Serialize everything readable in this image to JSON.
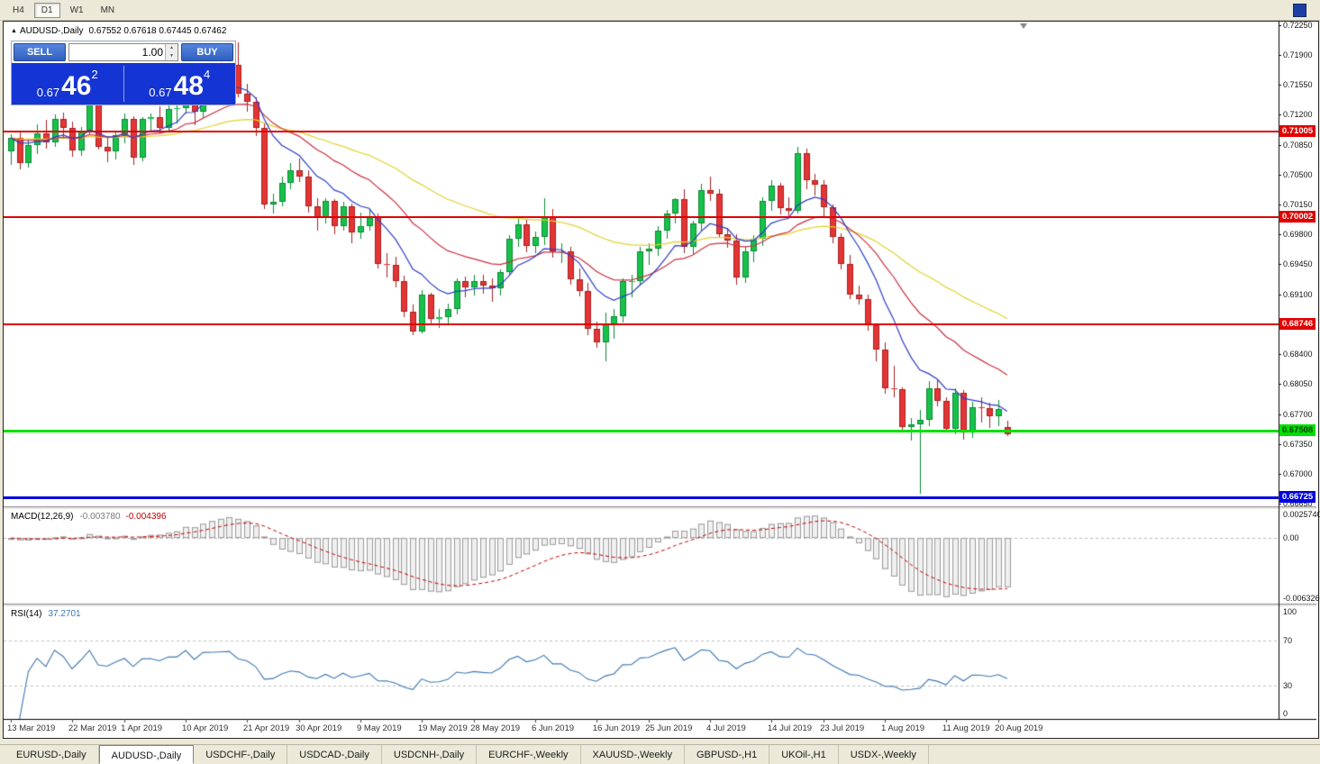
{
  "window": {
    "timeframes": [
      {
        "label": "H4",
        "active": false
      },
      {
        "label": "D1",
        "active": true
      },
      {
        "label": "W1",
        "active": false
      },
      {
        "label": "MN",
        "active": false
      }
    ]
  },
  "icons": {
    "title_marker": "▲",
    "spinner_up": "▲",
    "spinner_down": "▼"
  },
  "chart": {
    "symbol_title": "AUDUSD-,Daily",
    "ohlc": "0.67552 0.67618 0.67445 0.67462"
  },
  "trade_panel": {
    "sell_label": "SELL",
    "buy_label": "BUY",
    "volume": "1.00",
    "sell_price": {
      "prefix": "0.67",
      "big": "46",
      "sup": "2"
    },
    "buy_price": {
      "prefix": "0.67",
      "big": "48",
      "sup": "4"
    }
  },
  "indicators": {
    "macd": {
      "label": "MACD(12,26,9)",
      "main_value": "-0.003780",
      "signal_value": "-0.004396",
      "fast": 12,
      "slow": 26,
      "signal": 9,
      "histogram_color": "#9a9a9a",
      "signal_color": "#cc0000",
      "axis_labels": [
        {
          "text": "0.0025740",
          "value": 0.002574
        },
        {
          "text": "0.00",
          "value": 0
        },
        {
          "text": "-0.0063260",
          "value": -0.006326
        }
      ]
    },
    "rsi": {
      "label": "RSI(14)",
      "value": "37.2701",
      "period": 14,
      "color": "#3c78b4",
      "levels": [
        70,
        30
      ],
      "axis_labels": [
        {
          "text": "100",
          "value": 100
        },
        {
          "text": "70",
          "value": 70
        },
        {
          "text": "30",
          "value": 30
        },
        {
          "text": "0",
          "value": 0
        }
      ]
    }
  },
  "chart_data": {
    "type": "candlestick",
    "symbol": "AUDUSD-",
    "timeframe": "Daily",
    "current_bar": {
      "open": 0.67552,
      "high": 0.67618,
      "low": 0.67445,
      "close": 0.67462
    },
    "ylim": [
      0.6662,
      0.7229
    ],
    "up_color": "#17c24a",
    "up_border": "#0a8a34",
    "down_color": "#e43535",
    "down_border": "#a81f1f",
    "y_ticks": [
      "0.72250",
      "0.71900",
      "0.71550",
      "0.71200",
      "0.70850",
      "0.70500",
      "0.70150",
      "0.69800",
      "0.69450",
      "0.69100",
      "0.68750",
      "0.68400",
      "0.68050",
      "0.67700",
      "0.67350",
      "0.67000",
      "0.66650"
    ],
    "x_labels": [
      {
        "t": "13 Mar 2019",
        "i": 0
      },
      {
        "t": "22 Mar 2019",
        "i": 7
      },
      {
        "t": "1 Apr 2019",
        "i": 13
      },
      {
        "t": "10 Apr 2019",
        "i": 20
      },
      {
        "t": "21 Apr 2019",
        "i": 27
      },
      {
        "t": "30 Apr 2019",
        "i": 33
      },
      {
        "t": "9 May 2019",
        "i": 40
      },
      {
        "t": "19 May 2019",
        "i": 47
      },
      {
        "t": "28 May 2019",
        "i": 53
      },
      {
        "t": "6 Jun 2019",
        "i": 60
      },
      {
        "t": "16 Jun 2019",
        "i": 67
      },
      {
        "t": "25 Jun 2019",
        "i": 73
      },
      {
        "t": "4 Jul 2019",
        "i": 80
      },
      {
        "t": "14 Jul 2019",
        "i": 87
      },
      {
        "t": "23 Jul 2019",
        "i": 93
      },
      {
        "t": "1 Aug 2019",
        "i": 100
      },
      {
        "t": "11 Aug 2019",
        "i": 107
      },
      {
        "t": "20 Aug 2019",
        "i": 113
      }
    ],
    "moving_averages": [
      {
        "type": "ema",
        "period": 9,
        "color": "#2c3cc8"
      },
      {
        "type": "ema",
        "period": 21,
        "color": "#cc3040"
      },
      {
        "type": "ema",
        "period": 50,
        "color": "#e2d22e"
      }
    ],
    "levels": [
      {
        "price": 0.71005,
        "label": "0.71005",
        "color": "#e00000",
        "thickness": 2,
        "text": "#ffffff",
        "name": "resistance-line-1"
      },
      {
        "price": 0.70002,
        "label": "0.70002",
        "color": "#e00000",
        "thickness": 2,
        "text": "#ffffff",
        "name": "resistance-line-2"
      },
      {
        "price": 0.68746,
        "label": "0.68746",
        "color": "#e00000",
        "thickness": 2,
        "text": "#ffffff",
        "name": "resistance-line-3"
      },
      {
        "price": 0.67508,
        "label": "0.67508",
        "color": "#00e000",
        "thickness": 3,
        "text": "#003300",
        "name": "support-line-current"
      },
      {
        "price": 0.66725,
        "label": "0.66725",
        "color": "#0000e0",
        "thickness": 3,
        "text": "#ffffff",
        "name": "support-line-lower"
      }
    ],
    "candles": [
      [
        0.7077,
        0.7097,
        0.7061,
        0.7093
      ],
      [
        0.7093,
        0.7099,
        0.7056,
        0.7064
      ],
      [
        0.7064,
        0.7092,
        0.7058,
        0.7085
      ],
      [
        0.7085,
        0.7109,
        0.7074,
        0.7098
      ],
      [
        0.7098,
        0.7114,
        0.708,
        0.7088
      ],
      [
        0.7088,
        0.712,
        0.7082,
        0.7115
      ],
      [
        0.7115,
        0.7123,
        0.7092,
        0.7105
      ],
      [
        0.7105,
        0.7112,
        0.7071,
        0.7078
      ],
      [
        0.7078,
        0.7106,
        0.7072,
        0.71
      ],
      [
        0.71,
        0.7137,
        0.7096,
        0.7135
      ],
      [
        0.7135,
        0.7139,
        0.7079,
        0.7083
      ],
      [
        0.7083,
        0.7095,
        0.7065,
        0.7077
      ],
      [
        0.7077,
        0.71,
        0.7068,
        0.7096
      ],
      [
        0.7096,
        0.7121,
        0.7087,
        0.7115
      ],
      [
        0.7115,
        0.7118,
        0.7061,
        0.707
      ],
      [
        0.707,
        0.7117,
        0.7066,
        0.7115
      ],
      [
        0.7115,
        0.7122,
        0.7102,
        0.7117
      ],
      [
        0.7117,
        0.713,
        0.7098,
        0.7105
      ],
      [
        0.7105,
        0.7131,
        0.7099,
        0.7127
      ],
      [
        0.7127,
        0.7134,
        0.711,
        0.7128
      ],
      [
        0.7128,
        0.7173,
        0.7121,
        0.7168
      ],
      [
        0.7168,
        0.7174,
        0.7108,
        0.7124
      ],
      [
        0.7124,
        0.7178,
        0.7117,
        0.7172
      ],
      [
        0.7172,
        0.7192,
        0.7156,
        0.7173
      ],
      [
        0.7173,
        0.7198,
        0.7159,
        0.7176
      ],
      [
        0.7176,
        0.7206,
        0.7162,
        0.7178
      ],
      [
        0.7178,
        0.7205,
        0.714,
        0.7145
      ],
      [
        0.7145,
        0.7156,
        0.7124,
        0.7135
      ],
      [
        0.7135,
        0.714,
        0.7095,
        0.7105
      ],
      [
        0.7105,
        0.711,
        0.701,
        0.7015
      ],
      [
        0.7015,
        0.7028,
        0.7004,
        0.7018
      ],
      [
        0.7018,
        0.7048,
        0.7013,
        0.704
      ],
      [
        0.704,
        0.7064,
        0.7033,
        0.7055
      ],
      [
        0.7055,
        0.7069,
        0.7041,
        0.7048
      ],
      [
        0.7048,
        0.7055,
        0.7006,
        0.7013
      ],
      [
        0.7013,
        0.7022,
        0.6985,
        0.7
      ],
      [
        0.7,
        0.7022,
        0.6993,
        0.7019
      ],
      [
        0.7019,
        0.7021,
        0.698,
        0.699
      ],
      [
        0.699,
        0.7018,
        0.6985,
        0.7013
      ],
      [
        0.7013,
        0.7016,
        0.697,
        0.6982
      ],
      [
        0.6982,
        0.7006,
        0.6975,
        0.699
      ],
      [
        0.699,
        0.7009,
        0.6985,
        0.7
      ],
      [
        0.7,
        0.7005,
        0.694,
        0.6945
      ],
      [
        0.6945,
        0.6958,
        0.693,
        0.6944
      ],
      [
        0.6944,
        0.6954,
        0.6918,
        0.6926
      ],
      [
        0.6926,
        0.6932,
        0.6883,
        0.689
      ],
      [
        0.689,
        0.6898,
        0.6862,
        0.6866
      ],
      [
        0.6866,
        0.6915,
        0.6864,
        0.691
      ],
      [
        0.691,
        0.6912,
        0.6876,
        0.6881
      ],
      [
        0.6881,
        0.6893,
        0.6871,
        0.6883
      ],
      [
        0.6883,
        0.6899,
        0.6874,
        0.6893
      ],
      [
        0.6893,
        0.6929,
        0.6886,
        0.6925
      ],
      [
        0.6925,
        0.6931,
        0.6906,
        0.6918
      ],
      [
        0.6918,
        0.6933,
        0.6909,
        0.6925
      ],
      [
        0.6925,
        0.6933,
        0.6911,
        0.692
      ],
      [
        0.692,
        0.6929,
        0.6901,
        0.6917
      ],
      [
        0.6917,
        0.6939,
        0.6909,
        0.6936
      ],
      [
        0.6936,
        0.6979,
        0.6932,
        0.6975
      ],
      [
        0.6975,
        0.6999,
        0.6966,
        0.6992
      ],
      [
        0.6992,
        0.6997,
        0.6959,
        0.6967
      ],
      [
        0.6967,
        0.6983,
        0.6958,
        0.6977
      ],
      [
        0.6977,
        0.7022,
        0.6968,
        0.7
      ],
      [
        0.7,
        0.701,
        0.6953,
        0.696
      ],
      [
        0.696,
        0.697,
        0.6947,
        0.696
      ],
      [
        0.696,
        0.6965,
        0.6921,
        0.6928
      ],
      [
        0.6928,
        0.694,
        0.6908,
        0.6914
      ],
      [
        0.6914,
        0.6923,
        0.6862,
        0.687
      ],
      [
        0.687,
        0.6878,
        0.6848,
        0.6854
      ],
      [
        0.6854,
        0.6889,
        0.6832,
        0.6875
      ],
      [
        0.6875,
        0.6893,
        0.6858,
        0.6884
      ],
      [
        0.6884,
        0.6929,
        0.6877,
        0.6925
      ],
      [
        0.6925,
        0.6933,
        0.6907,
        0.6926
      ],
      [
        0.6926,
        0.6965,
        0.692,
        0.696
      ],
      [
        0.696,
        0.697,
        0.6944,
        0.6963
      ],
      [
        0.6963,
        0.699,
        0.6955,
        0.6985
      ],
      [
        0.6985,
        0.7009,
        0.6975,
        0.7005
      ],
      [
        0.7005,
        0.7022,
        0.6993,
        0.7021
      ],
      [
        0.7021,
        0.7033,
        0.6958,
        0.6965
      ],
      [
        0.6965,
        0.6996,
        0.6956,
        0.6993
      ],
      [
        0.6993,
        0.7039,
        0.6985,
        0.7032
      ],
      [
        0.7032,
        0.7048,
        0.7019,
        0.7028
      ],
      [
        0.7028,
        0.7033,
        0.6977,
        0.698
      ],
      [
        0.698,
        0.6988,
        0.6964,
        0.6973
      ],
      [
        0.6973,
        0.698,
        0.6921,
        0.693
      ],
      [
        0.693,
        0.6965,
        0.6923,
        0.696
      ],
      [
        0.696,
        0.6979,
        0.6948,
        0.6975
      ],
      [
        0.6975,
        0.7023,
        0.6967,
        0.7019
      ],
      [
        0.7019,
        0.7043,
        0.7008,
        0.7037
      ],
      [
        0.7037,
        0.704,
        0.7003,
        0.7011
      ],
      [
        0.7011,
        0.7023,
        0.7001,
        0.7008
      ],
      [
        0.7008,
        0.70825,
        0.7004,
        0.7075
      ],
      [
        0.7075,
        0.708,
        0.7033,
        0.7043
      ],
      [
        0.7043,
        0.7051,
        0.7026,
        0.7038
      ],
      [
        0.7038,
        0.7044,
        0.7,
        0.7012
      ],
      [
        0.7012,
        0.7015,
        0.697,
        0.6977
      ],
      [
        0.6977,
        0.6981,
        0.6939,
        0.6946
      ],
      [
        0.6946,
        0.6956,
        0.6904,
        0.691
      ],
      [
        0.691,
        0.692,
        0.6898,
        0.6904
      ],
      [
        0.6904,
        0.691,
        0.6868,
        0.6874
      ],
      [
        0.6874,
        0.6876,
        0.6832,
        0.6845
      ],
      [
        0.6845,
        0.6854,
        0.6794,
        0.68
      ],
      [
        0.68,
        0.6826,
        0.6789,
        0.6799
      ],
      [
        0.6799,
        0.6801,
        0.6748,
        0.6755
      ],
      [
        0.6755,
        0.6765,
        0.6739,
        0.6758
      ],
      [
        0.6758,
        0.6775,
        0.6677,
        0.6763
      ],
      [
        0.6763,
        0.6809,
        0.6756,
        0.68
      ],
      [
        0.68,
        0.681,
        0.6779,
        0.6785
      ],
      [
        0.6785,
        0.679,
        0.6748,
        0.6753
      ],
      [
        0.6753,
        0.68,
        0.6746,
        0.6795
      ],
      [
        0.6795,
        0.6798,
        0.674,
        0.6748
      ],
      [
        0.6748,
        0.6784,
        0.6742,
        0.6778
      ],
      [
        0.6778,
        0.6789,
        0.676,
        0.6777
      ],
      [
        0.6777,
        0.6783,
        0.6754,
        0.6767
      ],
      [
        0.6767,
        0.6786,
        0.6756,
        0.6776
      ],
      [
        0.67552,
        0.67618,
        0.67445,
        0.67462
      ]
    ]
  },
  "tabs": {
    "items": [
      {
        "label": "EURUSD-,Daily",
        "active": false
      },
      {
        "label": "AUDUSD-,Daily",
        "active": true
      },
      {
        "label": "USDCHF-,Daily",
        "active": false
      },
      {
        "label": "USDCAD-,Daily",
        "active": false
      },
      {
        "label": "USDCNH-,Daily",
        "active": false
      },
      {
        "label": "EURCHF-,Weekly",
        "active": false
      },
      {
        "label": "XAUUSD-,Weekly",
        "active": false
      },
      {
        "label": "GBPUSD-,H1",
        "active": false
      },
      {
        "label": "UKOil-,H1",
        "active": false
      },
      {
        "label": "USDX-,Weekly",
        "active": false
      }
    ]
  }
}
